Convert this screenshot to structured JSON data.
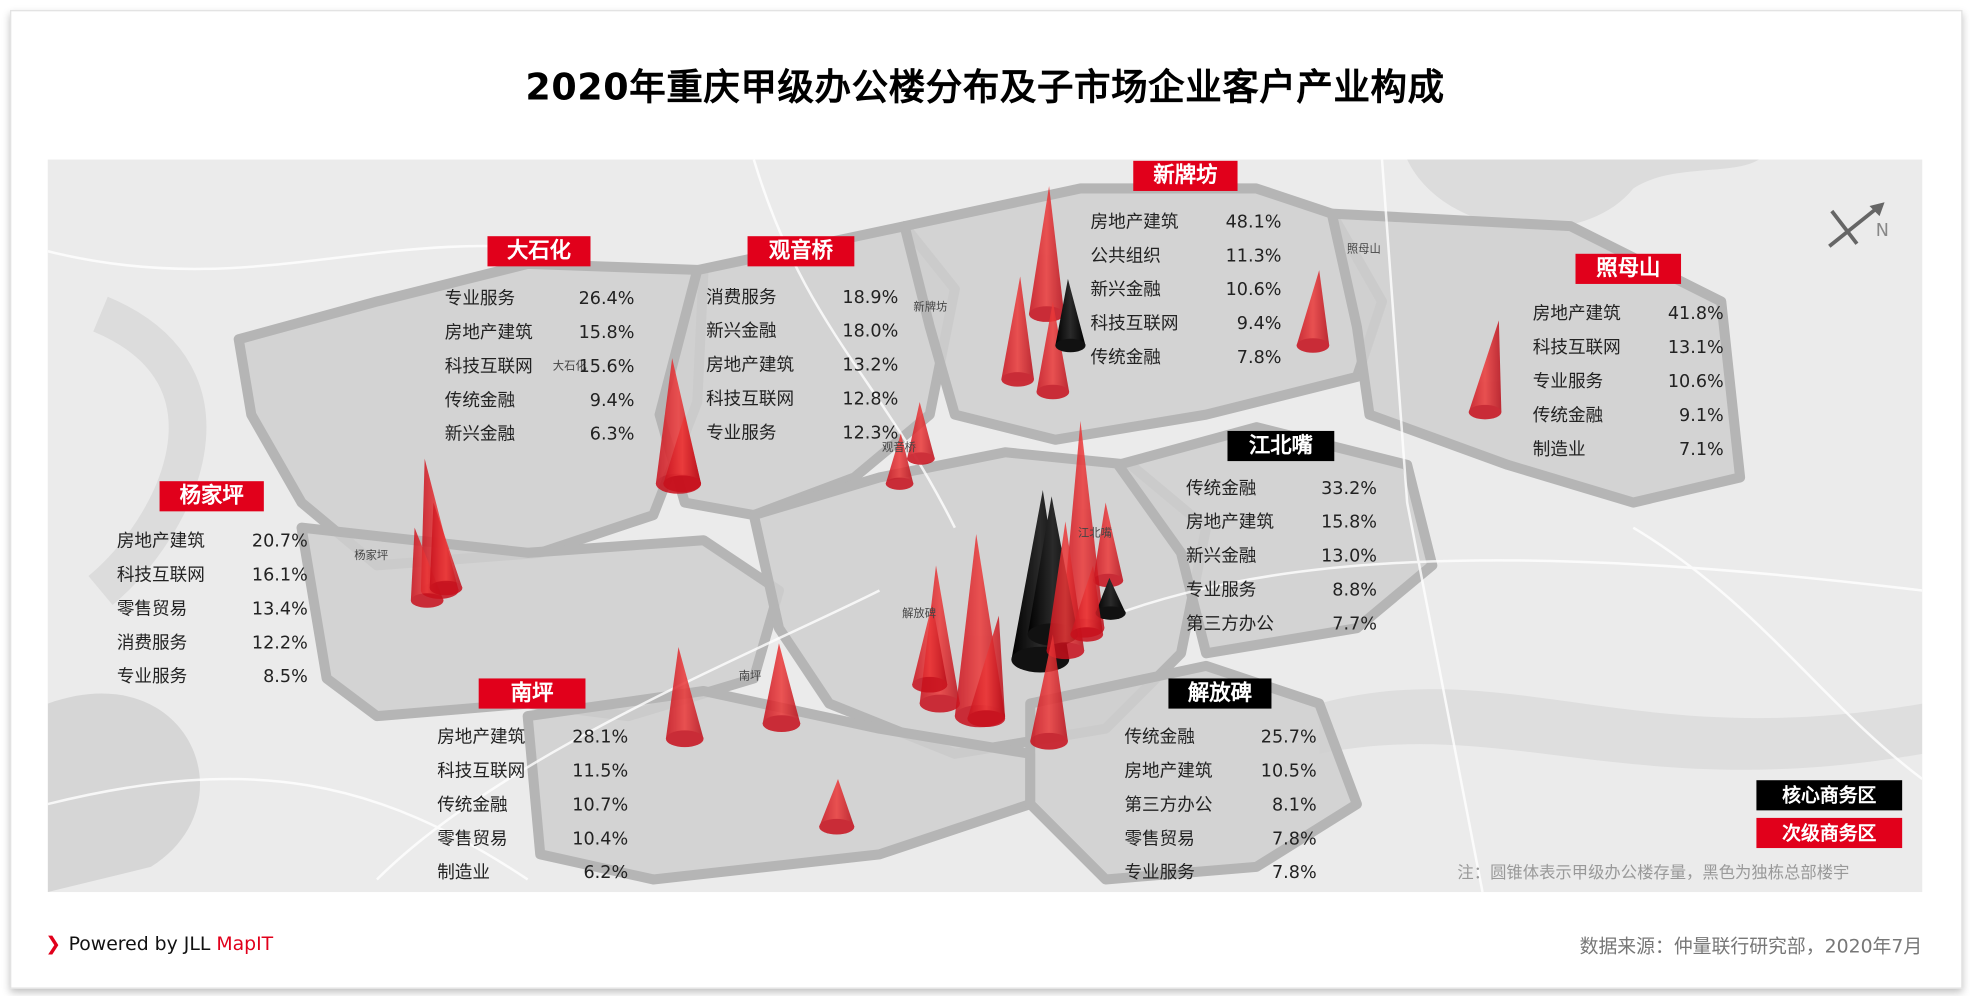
{
  "title": "2020年重庆甲级办公楼分布及子市场企业客户产业构成",
  "colors": {
    "core": "#000000",
    "secondary": "#e1001b"
  },
  "districts": [
    {
      "name": "大石化",
      "type": "secondary",
      "items": [
        {
          "sector": "专业服务",
          "share": "26.4%"
        },
        {
          "sector": "房地产建筑",
          "share": "15.8%"
        },
        {
          "sector": "科技互联网",
          "share": "15.6%"
        },
        {
          "sector": "传统金融",
          "share": "9.4%"
        },
        {
          "sector": "新兴金融",
          "share": "6.3%"
        }
      ]
    },
    {
      "name": "观音桥",
      "type": "secondary",
      "items": [
        {
          "sector": "消费服务",
          "share": "18.9%"
        },
        {
          "sector": "新兴金融",
          "share": "18.0%"
        },
        {
          "sector": "房地产建筑",
          "share": "13.2%"
        },
        {
          "sector": "科技互联网",
          "share": "12.8%"
        },
        {
          "sector": "专业服务",
          "share": "12.3%"
        }
      ]
    },
    {
      "name": "新牌坊",
      "type": "secondary",
      "items": [
        {
          "sector": "房地产建筑",
          "share": "48.1%"
        },
        {
          "sector": "公共组织",
          "share": "11.3%"
        },
        {
          "sector": "新兴金融",
          "share": "10.6%"
        },
        {
          "sector": "科技互联网",
          "share": "9.4%"
        },
        {
          "sector": "传统金融",
          "share": "7.8%"
        }
      ]
    },
    {
      "name": "照母山",
      "type": "secondary",
      "items": [
        {
          "sector": "房地产建筑",
          "share": "41.8%"
        },
        {
          "sector": "科技互联网",
          "share": "13.1%"
        },
        {
          "sector": "专业服务",
          "share": "10.6%"
        },
        {
          "sector": "传统金融",
          "share": "9.1%"
        },
        {
          "sector": "制造业",
          "share": "7.1%"
        }
      ]
    },
    {
      "name": "江北嘴",
      "type": "core",
      "items": [
        {
          "sector": "传统金融",
          "share": "33.2%"
        },
        {
          "sector": "房地产建筑",
          "share": "15.8%"
        },
        {
          "sector": "新兴金融",
          "share": "13.0%"
        },
        {
          "sector": "专业服务",
          "share": "8.8%"
        },
        {
          "sector": "第三方办公",
          "share": "7.7%"
        }
      ]
    },
    {
      "name": "杨家坪",
      "type": "secondary",
      "items": [
        {
          "sector": "房地产建筑",
          "share": "20.7%"
        },
        {
          "sector": "科技互联网",
          "share": "16.1%"
        },
        {
          "sector": "零售贸易",
          "share": "13.4%"
        },
        {
          "sector": "消费服务",
          "share": "12.2%"
        },
        {
          "sector": "专业服务",
          "share": "8.5%"
        }
      ]
    },
    {
      "name": "南坪",
      "type": "secondary",
      "items": [
        {
          "sector": "房地产建筑",
          "share": "28.1%"
        },
        {
          "sector": "科技互联网",
          "share": "11.5%"
        },
        {
          "sector": "传统金融",
          "share": "10.7%"
        },
        {
          "sector": "零售贸易",
          "share": "10.4%"
        },
        {
          "sector": "制造业",
          "share": "6.2%"
        }
      ]
    },
    {
      "name": "解放碑",
      "type": "core",
      "items": [
        {
          "sector": "传统金融",
          "share": "25.7%"
        },
        {
          "sector": "房地产建筑",
          "share": "10.5%"
        },
        {
          "sector": "第三方办公",
          "share": "8.1%"
        },
        {
          "sector": "零售贸易",
          "share": "7.8%"
        },
        {
          "sector": "专业服务",
          "share": "7.8%"
        }
      ]
    }
  ],
  "map_labels": [
    "大石化",
    "新牌坊",
    "观音桥",
    "杨家坪",
    "南坪",
    "解放碑",
    "照母山",
    "江北嘴"
  ],
  "north_label": "N",
  "legend": {
    "core": "核心商务区",
    "secondary": "次级商务区"
  },
  "note": "注：圆锥体表示甲级办公楼存量，黑色为独栋总部楼宇",
  "footer": {
    "powered": "Powered by JLL ",
    "brand": "MapIT",
    "chevron": "❯",
    "source": "数据来源：仲量联行研究部，2020年7月"
  }
}
